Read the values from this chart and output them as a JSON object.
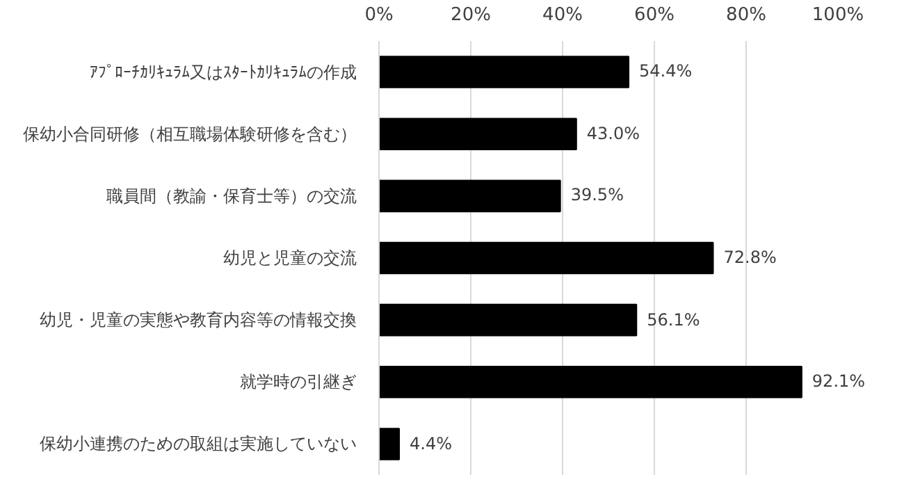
{
  "chart_data": {
    "type": "bar",
    "orientation": "horizontal",
    "categories": [
      "ｱﾌﾟﾛｰﾁｶﾘｷｭﾗﾑ又はｽﾀｰﾄｶﾘｷｭﾗﾑの作成",
      "保幼小合同研修（相互職場体験研修を含む）",
      "職員間（教諭・保育士等）の交流",
      "幼児と児童の交流",
      "幼児・児童の実態や教育内容等の情報交換",
      "就学時の引継ぎ",
      "保幼小連携のための取組は実施していない"
    ],
    "values": [
      54.4,
      43.0,
      39.5,
      72.8,
      56.1,
      92.1,
      4.4
    ],
    "value_labels": [
      "54.4%",
      "43.0%",
      "39.5%",
      "72.8%",
      "56.1%",
      "92.1%",
      "4.4%"
    ],
    "color": "#000000",
    "xlim": [
      0,
      100
    ],
    "xticks": [
      {
        "value": 0,
        "label": "0%"
      },
      {
        "value": 20,
        "label": "20%"
      },
      {
        "value": 40,
        "label": "40%"
      },
      {
        "value": 60,
        "label": "60%"
      },
      {
        "value": 80,
        "label": "80%"
      },
      {
        "value": 100,
        "label": "100%"
      }
    ],
    "grid": "x"
  }
}
